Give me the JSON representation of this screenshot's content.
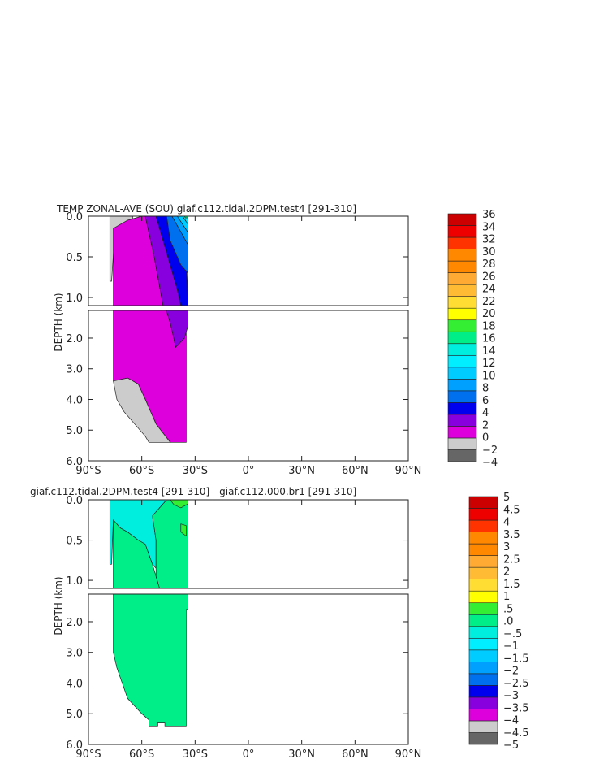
{
  "colors": {
    "temp_levels": [
      "#666666",
      "#cccccc",
      "#dd00dd",
      "#8800dd",
      "#0000ee",
      "#0070ee",
      "#00a0ff",
      "#00ccff",
      "#00eeff",
      "#00eedd",
      "#00ee88",
      "#33ee33",
      "#ffff00",
      "#ffdd33",
      "#ffbb33",
      "#ffaa33",
      "#ff8800",
      "#ff8800",
      "#ff3300",
      "#ee0000",
      "#cc0000"
    ],
    "anom_levels": [
      "#666666",
      "#cccccc",
      "#dd00dd",
      "#8800dd",
      "#0000ee",
      "#0070ee",
      "#00a0ff",
      "#00ccff",
      "#00eeff",
      "#00eedd",
      "#00ee88",
      "#33ee33",
      "#ffff00",
      "#ffdd33",
      "#ffbb33",
      "#ffaa33",
      "#ff8800",
      "#ff8800",
      "#ff3300",
      "#ee0000",
      "#cc0000"
    ]
  },
  "chart_data": [
    {
      "type": "heatmap",
      "title": "TEMP ZONAL-AVE (SOU) giaf.c112.tidal.2DPM.test4 [291-310]",
      "ylabel": "DEPTH (km)",
      "x_ticks": [
        "90°S",
        "60°S",
        "30°S",
        "0°",
        "30°N",
        "60°N",
        "90°N"
      ],
      "y_ticks_upper": [
        "0.0",
        "0.5",
        "1.0"
      ],
      "y_ticks_lower": [
        "2.0",
        "3.0",
        "4.0",
        "5.0",
        "6.0"
      ],
      "xlim": [
        -90,
        90
      ],
      "ylim_upper": [
        0,
        1.1
      ],
      "ylim_lower": [
        1.1,
        6.0
      ],
      "colorbar_labels": [
        "36",
        "34",
        "32",
        "30",
        "28",
        "26",
        "24",
        "22",
        "20",
        "18",
        "16",
        "14",
        "12",
        "10",
        "8",
        "6",
        "4",
        "2",
        "0",
        "−2",
        "−4"
      ],
      "colorbar_levels": [
        -4,
        -2,
        0,
        2,
        4,
        6,
        8,
        10,
        12,
        14,
        16,
        18,
        20,
        22,
        24,
        26,
        28,
        30,
        32,
        34,
        36
      ],
      "regions": [
        {
          "value": "-1",
          "points": [
            [
              -78,
              0
            ],
            [
              -65,
              0
            ],
            [
              -65,
              0.05
            ],
            [
              -75,
              0.15
            ],
            [
              -77,
              0.8
            ],
            [
              -78,
              0.8
            ]
          ]
        },
        {
          "value": "1",
          "points": [
            [
              -76,
              0.15
            ],
            [
              -68,
              0.05
            ],
            [
              -60,
              0
            ],
            [
              -58,
              0
            ],
            [
              -53,
              0.5
            ],
            [
              -48,
              1.1
            ],
            [
              -76,
              1.1
            ]
          ]
        },
        {
          "value": "3",
          "points": [
            [
              -58,
              0
            ],
            [
              -52,
              0
            ],
            [
              -40,
              0.9
            ],
            [
              -38,
              1.1
            ],
            [
              -48,
              1.1
            ],
            [
              -53,
              0.5
            ]
          ]
        },
        {
          "value": "5",
          "points": [
            [
              -52,
              0
            ],
            [
              -46,
              0
            ],
            [
              -35,
              0.4
            ],
            [
              -34,
              1.1
            ],
            [
              -38,
              1.1
            ],
            [
              -40,
              0.9
            ]
          ]
        },
        {
          "value": "7",
          "points": [
            [
              -46,
              0
            ],
            [
              -43,
              0
            ],
            [
              -34,
              0.35
            ],
            [
              -34,
              0.7
            ],
            [
              -38,
              0.6
            ],
            [
              -44,
              0.3
            ]
          ]
        },
        {
          "value": "9",
          "points": [
            [
              -43,
              0
            ],
            [
              -40,
              0
            ],
            [
              -34,
              0.2
            ],
            [
              -34,
              0.35
            ]
          ]
        },
        {
          "value": "11",
          "points": [
            [
              -40,
              0
            ],
            [
              -37,
              0
            ],
            [
              -34,
              0.1
            ],
            [
              -34,
              0.2
            ]
          ]
        },
        {
          "value": "13",
          "points": [
            [
              -37,
              0
            ],
            [
              -34,
              0
            ],
            [
              -34,
              0.1
            ]
          ]
        },
        {
          "value": "17",
          "points": [
            [
              -36,
              0
            ],
            [
              -34,
              0
            ],
            [
              -34,
              0.02
            ],
            [
              -35.5,
              0.02
            ]
          ]
        },
        {
          "value": "1",
          "points": [
            [
              -76,
              1.1
            ],
            [
              -47,
              1.1
            ],
            [
              -44,
              1.5
            ],
            [
              -42,
              2.0
            ],
            [
              -41,
              2.3
            ],
            [
              -36,
              2.0
            ],
            [
              -35,
              1.4
            ],
            [
              -35,
              5.4
            ],
            [
              -44,
              5.4
            ],
            [
              -52,
              4.8
            ],
            [
              -58,
              4.0
            ],
            [
              -62,
              3.5
            ],
            [
              -68,
              3.3
            ],
            [
              -76,
              3.4
            ]
          ]
        },
        {
          "value": "3",
          "points": [
            [
              -47,
              1.1
            ],
            [
              -34,
              1.1
            ],
            [
              -34,
              1.6
            ],
            [
              -36,
              2.0
            ],
            [
              -41,
              2.3
            ],
            [
              -42,
              2.0
            ],
            [
              -44,
              1.5
            ]
          ]
        },
        {
          "value": "-1",
          "points": [
            [
              -76,
              3.4
            ],
            [
              -68,
              3.3
            ],
            [
              -62,
              3.5
            ],
            [
              -58,
              4.0
            ],
            [
              -52,
              4.8
            ],
            [
              -44,
              5.4
            ],
            [
              -56,
              5.4
            ],
            [
              -58,
              5.2
            ],
            [
              -64,
              4.8
            ],
            [
              -70,
              4.4
            ],
            [
              -74,
              4.0
            ]
          ]
        }
      ]
    },
    {
      "type": "heatmap",
      "title": "giaf.c112.tidal.2DPM.test4 [291-310] - giaf.c112.000.br1 [291-310]",
      "ylabel": "DEPTH (km)",
      "x_ticks": [
        "90°S",
        "60°S",
        "30°S",
        "0°",
        "30°N",
        "60°N",
        "90°N"
      ],
      "y_ticks_upper": [
        "0.0",
        "0.5",
        "1.0"
      ],
      "y_ticks_lower": [
        "2.0",
        "3.0",
        "4.0",
        "5.0",
        "6.0"
      ],
      "xlim": [
        -90,
        90
      ],
      "ylim_upper": [
        0,
        1.1
      ],
      "ylim_lower": [
        1.1,
        6.0
      ],
      "colorbar_labels": [
        "5",
        "4.5",
        "4",
        "3.5",
        "3",
        "2.5",
        "2",
        "1.5",
        "1",
        ".5",
        ".0",
        "−.5",
        "−1",
        "−1.5",
        "−2",
        "−2.5",
        "−3",
        "−3.5",
        "−4",
        "−4.5",
        "−5"
      ],
      "colorbar_levels": [
        -5,
        -4.5,
        -4,
        -3.5,
        -3,
        -2.5,
        -2,
        -1.5,
        -1,
        -0.5,
        0,
        0.5,
        1,
        1.5,
        2,
        2.5,
        3,
        3.5,
        4,
        4.5,
        5
      ],
      "regions": [
        {
          "value": "0.25",
          "points": [
            [
              -76,
              0.25
            ],
            [
              -72,
              0.35
            ],
            [
              -68,
              0.4
            ],
            [
              -62,
              0.5
            ],
            [
              -58,
              0.55
            ],
            [
              -54,
              0.8
            ],
            [
              -52,
              0.95
            ],
            [
              -50,
              1.1
            ],
            [
              -76,
              1.1
            ]
          ]
        },
        {
          "value": "-0.25",
          "points": [
            [
              -78,
              0
            ],
            [
              -46,
              0
            ],
            [
              -50,
              0.1
            ],
            [
              -54,
              0.2
            ],
            [
              -52,
              0.5
            ],
            [
              -52,
              0.85
            ],
            [
              -54,
              0.8
            ],
            [
              -58,
              0.55
            ],
            [
              -62,
              0.5
            ],
            [
              -68,
              0.4
            ],
            [
              -72,
              0.35
            ],
            [
              -76,
              0.25
            ],
            [
              -77,
              0.8
            ],
            [
              -78,
              0.8
            ]
          ]
        },
        {
          "value": "0.25",
          "points": [
            [
              -46,
              0
            ],
            [
              -34,
              0
            ],
            [
              -34,
              1.1
            ],
            [
              -50,
              1.1
            ],
            [
              -52,
              0.95
            ],
            [
              -52,
              0.5
            ],
            [
              -54,
              0.2
            ],
            [
              -50,
              0.1
            ]
          ]
        },
        {
          "value": "0.75",
          "points": [
            [
              -44,
              0
            ],
            [
              -34,
              0
            ],
            [
              -34,
              0.05
            ],
            [
              -38,
              0.1
            ],
            [
              -42,
              0.06
            ]
          ]
        },
        {
          "value": "0.75",
          "points": [
            [
              -38,
              0.3
            ],
            [
              -35,
              0.32
            ],
            [
              -35,
              0.45
            ],
            [
              -38,
              0.4
            ]
          ]
        },
        {
          "value": "0.25",
          "points": [
            [
              -76,
              1.1
            ],
            [
              -34,
              1.1
            ],
            [
              -34,
              1.6
            ],
            [
              -35,
              1.6
            ],
            [
              -35,
              5.4
            ],
            [
              -47,
              5.4
            ],
            [
              -47,
              5.3
            ],
            [
              -51,
              5.3
            ],
            [
              -51,
              5.4
            ],
            [
              -56,
              5.4
            ],
            [
              -56,
              5.2
            ],
            [
              -60,
              5.0
            ],
            [
              -68,
              4.5
            ],
            [
              -74,
              3.5
            ],
            [
              -76,
              3.0
            ]
          ]
        }
      ]
    }
  ]
}
